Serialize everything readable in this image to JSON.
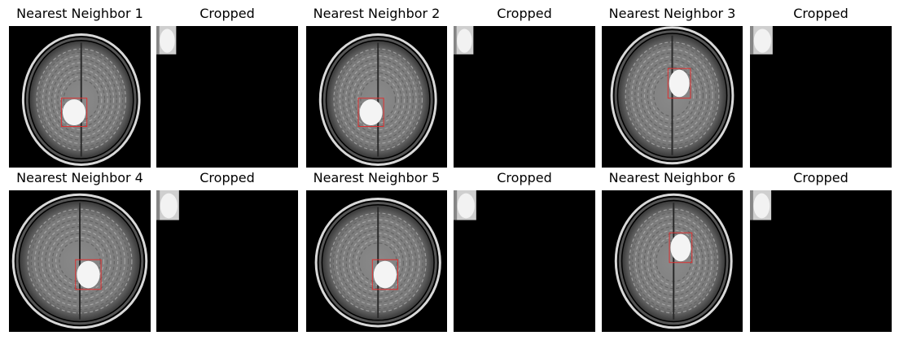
{
  "figure": {
    "rows": [
      {
        "panels": [
          {
            "title": "Nearest Neighbor 1",
            "kind": "scan",
            "lesion_side": "left"
          },
          {
            "title": "Cropped",
            "kind": "crop"
          },
          {
            "title": "Nearest Neighbor 2",
            "kind": "scan",
            "lesion_side": "left"
          },
          {
            "title": "Cropped",
            "kind": "crop"
          },
          {
            "title": "Nearest Neighbor 3",
            "kind": "scan",
            "lesion_side": "right"
          },
          {
            "title": "Cropped",
            "kind": "crop"
          }
        ]
      },
      {
        "panels": [
          {
            "title": "Nearest Neighbor 4",
            "kind": "scan",
            "lesion_side": "right"
          },
          {
            "title": "Cropped",
            "kind": "crop"
          },
          {
            "title": "Nearest Neighbor 5",
            "kind": "scan",
            "lesion_side": "right"
          },
          {
            "title": "Cropped",
            "kind": "crop"
          },
          {
            "title": "Nearest Neighbor 6",
            "kind": "scan",
            "lesion_side": "right"
          },
          {
            "title": "Cropped",
            "kind": "crop"
          }
        ]
      }
    ],
    "colors": {
      "background": "#000000",
      "tissue": "#9a9a9a",
      "lesion": "#f4f4f4",
      "box": "#e03030",
      "title": "#000000"
    }
  }
}
